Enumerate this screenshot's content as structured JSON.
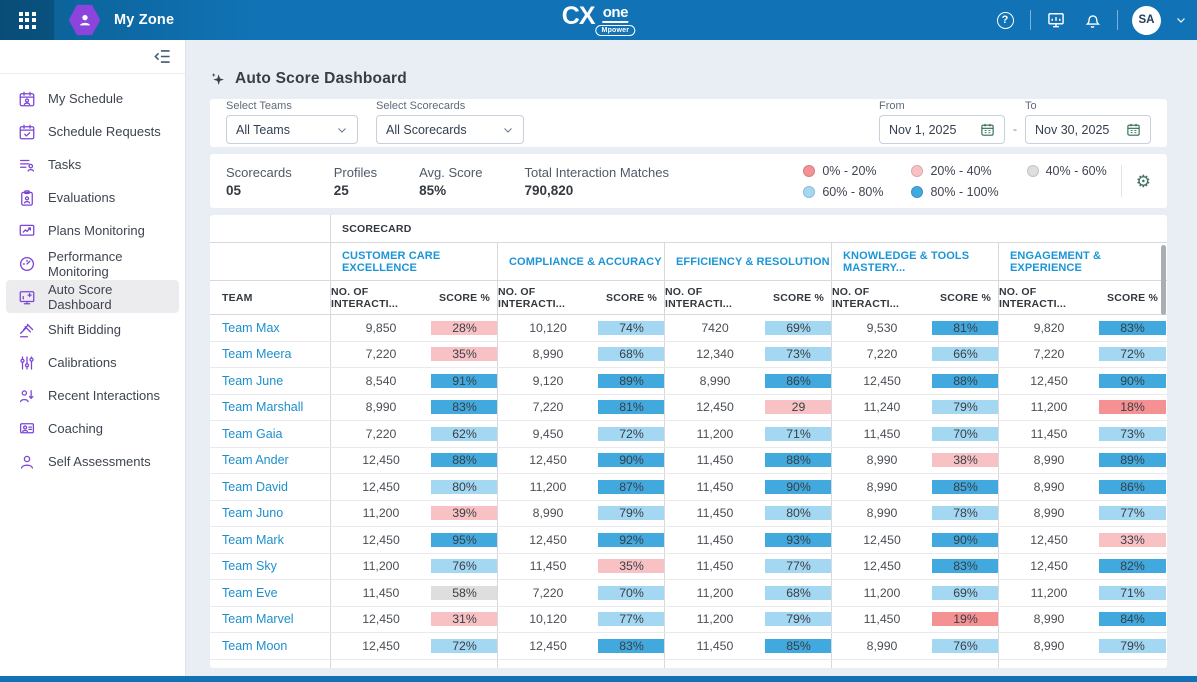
{
  "topbar": {
    "app_name": "My Zone",
    "logo_cx": "CX",
    "logo_one": "one",
    "logo_sub": "Mpower",
    "help_glyph": "?",
    "avatar_initials": "SA"
  },
  "sidebar": {
    "items": [
      {
        "label": "My Schedule",
        "icon": "my-schedule-icon",
        "selected": false
      },
      {
        "label": "Schedule Requests",
        "icon": "schedule-requests-icon",
        "selected": false
      },
      {
        "label": "Tasks",
        "icon": "tasks-icon",
        "selected": false
      },
      {
        "label": "Evaluations",
        "icon": "evaluations-icon",
        "selected": false
      },
      {
        "label": "Plans Monitoring",
        "icon": "plans-monitoring-icon",
        "selected": false
      },
      {
        "label": "Performance Monitoring",
        "icon": "performance-monitoring-icon",
        "selected": false
      },
      {
        "label": "Auto Score Dashboard",
        "icon": "auto-score-dashboard-icon",
        "selected": true
      },
      {
        "label": "Shift Bidding",
        "icon": "shift-bidding-icon",
        "selected": false
      },
      {
        "label": "Calibrations",
        "icon": "calibrations-icon",
        "selected": false
      },
      {
        "label": "Recent Interactions",
        "icon": "recent-interactions-icon",
        "selected": false
      },
      {
        "label": "Coaching",
        "icon": "coaching-icon",
        "selected": false
      },
      {
        "label": "Self Assessments",
        "icon": "self-assessments-icon",
        "selected": false
      }
    ]
  },
  "page": {
    "title": "Auto Score Dashboard"
  },
  "filters": {
    "teams_label": "Select Teams",
    "teams_value": "All Teams",
    "scorecards_label": "Select Scorecards",
    "scorecards_value": "All Scorecards",
    "from_label": "From",
    "from_value": "Nov 1, 2025",
    "range_separator": "-",
    "to_label": "To",
    "to_value": "Nov 30, 2025"
  },
  "stats": [
    {
      "label": "Scorecards",
      "value": "05"
    },
    {
      "label": "Profiles",
      "value": "25"
    },
    {
      "label": "Avg. Score",
      "value": "85%"
    },
    {
      "label": "Total Interaction Matches",
      "value": "790,820"
    }
  ],
  "legend": {
    "items": [
      {
        "label": "0% - 20%",
        "color": "#F59093"
      },
      {
        "label": "20% - 40%",
        "color": "#F8C2C5"
      },
      {
        "label": "40% - 60%",
        "color": "#DEDEDE"
      },
      {
        "label": "60% - 80%",
        "color": "#A3D7F2"
      },
      {
        "label": "80% - 100%",
        "color": "#41A9DE"
      }
    ],
    "band_thresholds": [
      20,
      40,
      60,
      80,
      100
    ]
  },
  "table": {
    "group_header": "SCORECARD",
    "team_header": "TEAM",
    "scorecards": [
      "CUSTOMER CARE EXCELLENCE",
      "COMPLIANCE & ACCURACY",
      "EFFICIENCY & RESOLUTION",
      "KNOWLEDGE & TOOLS MASTERY...",
      "ENGAGEMENT & EXPERIENCE"
    ],
    "col_interactions": "NO. OF INTERACTI...",
    "col_score": "SCORE %",
    "rows": [
      {
        "team": "Team Max",
        "cells": [
          [
            "9,850",
            "28%"
          ],
          [
            "10,120",
            "74%"
          ],
          [
            "7420",
            "69%"
          ],
          [
            "9,530",
            "81%"
          ],
          [
            "9,820",
            "83%"
          ]
        ]
      },
      {
        "team": "Team Meera",
        "cells": [
          [
            "7,220",
            "35%"
          ],
          [
            "8,990",
            "68%"
          ],
          [
            "12,340",
            "73%"
          ],
          [
            "7,220",
            "66%"
          ],
          [
            "7,220",
            "72%"
          ]
        ]
      },
      {
        "team": "Team June",
        "cells": [
          [
            "8,540",
            "91%"
          ],
          [
            "9,120",
            "89%"
          ],
          [
            "8,990",
            "86%"
          ],
          [
            "12,450",
            "88%"
          ],
          [
            "12,450",
            "90%"
          ]
        ]
      },
      {
        "team": "Team Marshall",
        "cells": [
          [
            "8,990",
            "83%"
          ],
          [
            "7,220",
            "81%"
          ],
          [
            "12,450",
            "29"
          ],
          [
            "11,240",
            "79%"
          ],
          [
            "11,200",
            "18%"
          ]
        ]
      },
      {
        "team": "Team Gaia",
        "cells": [
          [
            "7,220",
            "62%"
          ],
          [
            "9,450",
            "72%"
          ],
          [
            "11,200",
            "71%"
          ],
          [
            "11,450",
            "70%"
          ],
          [
            "11,450",
            "73%"
          ]
        ]
      },
      {
        "team": "Team Ander",
        "cells": [
          [
            "12,450",
            "88%"
          ],
          [
            "12,450",
            "90%"
          ],
          [
            "11,450",
            "88%"
          ],
          [
            "8,990",
            "38%"
          ],
          [
            "8,990",
            "89%"
          ]
        ]
      },
      {
        "team": "Team David",
        "cells": [
          [
            "12,450",
            "80%"
          ],
          [
            "11,200",
            "87%"
          ],
          [
            "11,450",
            "90%"
          ],
          [
            "8,990",
            "85%"
          ],
          [
            "8,990",
            "86%"
          ]
        ]
      },
      {
        "team": "Team Juno",
        "cells": [
          [
            "11,200",
            "39%"
          ],
          [
            "8,990",
            "79%"
          ],
          [
            "11,450",
            "80%"
          ],
          [
            "8,990",
            "78%"
          ],
          [
            "8,990",
            "77%"
          ]
        ]
      },
      {
        "team": "Team Mark",
        "cells": [
          [
            "12,450",
            "95%"
          ],
          [
            "12,450",
            "92%"
          ],
          [
            "11,450",
            "93%"
          ],
          [
            "12,450",
            "90%"
          ],
          [
            "12,450",
            "33%"
          ]
        ]
      },
      {
        "team": "Team Sky",
        "cells": [
          [
            "11,200",
            "76%"
          ],
          [
            "11,450",
            "35%"
          ],
          [
            "11,450",
            "77%"
          ],
          [
            "12,450",
            "83%"
          ],
          [
            "12,450",
            "82%"
          ]
        ]
      },
      {
        "team": "Team Eve",
        "cells": [
          [
            "11,450",
            "58%"
          ],
          [
            "7,220",
            "70%"
          ],
          [
            "11,200",
            "68%"
          ],
          [
            "11,200",
            "69%"
          ],
          [
            "11,200",
            "71%"
          ]
        ]
      },
      {
        "team": "Team Marvel",
        "cells": [
          [
            "12,450",
            "31%"
          ],
          [
            "10,120",
            "77%"
          ],
          [
            "11,200",
            "79%"
          ],
          [
            "11,450",
            "19%"
          ],
          [
            "8,990",
            "84%"
          ]
        ]
      },
      {
        "team": "Team Moon",
        "cells": [
          [
            "12,450",
            "72%"
          ],
          [
            "12,450",
            "83%"
          ],
          [
            "11,450",
            "85%"
          ],
          [
            "8,990",
            "76%"
          ],
          [
            "8,990",
            "79%"
          ]
        ]
      }
    ],
    "partial_row": {
      "visible": true,
      "band": "80% - 100%"
    }
  }
}
